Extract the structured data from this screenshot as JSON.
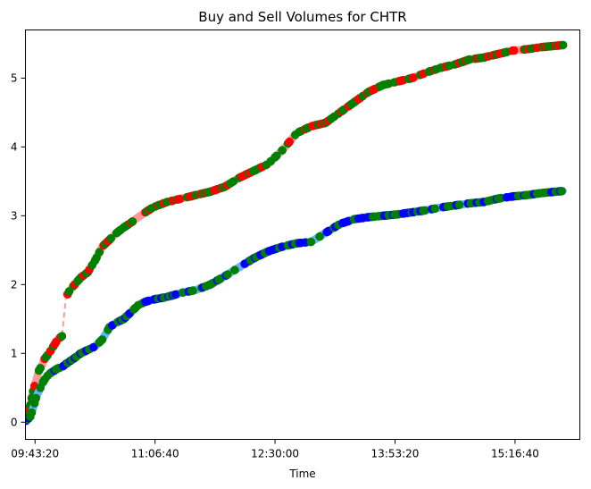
{
  "chart_data": {
    "type": "scatter",
    "title": "Buy and Sell Volumes for CHTR",
    "xlabel": "Time",
    "ylabel": "",
    "x_ticks": [
      "09:43:20",
      "11:06:40",
      "12:30:00",
      "13:53:20",
      "15:16:40"
    ],
    "x_tick_seconds": [
      35000,
      40000,
      45000,
      50000,
      55000
    ],
    "xlim_seconds": [
      34600,
      57700
    ],
    "ylim": [
      -0.25,
      5.7
    ],
    "y_ticks": [
      0,
      1,
      2,
      3,
      4,
      5
    ],
    "grid": false,
    "legend": "none",
    "colors": {
      "upper_line": "#ff9999",
      "upper_marker": "#ff0000",
      "lower_line": "#66b3ff",
      "lower_marker": "#0000ff",
      "trade_marker": "#008000"
    },
    "series": [
      {
        "color": "#ff9999",
        "marker_color": "#ff0000",
        "x": [
          "09:37",
          "09:40",
          "09:42",
          "09:44",
          "09:46",
          "09:48",
          "09:50",
          "09:53",
          "09:56",
          "09:59",
          "10:02",
          "10:05",
          "10:06",
          "10:07",
          "10:10",
          "10:15",
          "10:20",
          "10:25",
          "10:30",
          "10:35",
          "10:40",
          "10:45",
          "10:50",
          "10:55",
          "11:00",
          "11:05",
          "11:15",
          "11:25",
          "11:35",
          "11:45",
          "11:55",
          "12:05",
          "12:15",
          "12:25",
          "12:35",
          "12:45",
          "12:55",
          "13:05",
          "13:15",
          "13:25",
          "13:35",
          "13:45",
          "13:55",
          "14:05",
          "14:15",
          "14:25",
          "14:35",
          "14:45",
          "14:55",
          "15:05",
          "15:15",
          "15:25",
          "15:35",
          "15:45",
          "15:50"
        ],
        "y": [
          0.1,
          0.25,
          0.45,
          0.6,
          0.75,
          0.82,
          0.92,
          1.0,
          1.1,
          1.2,
          1.25,
          1.85,
          1.86,
          1.9,
          1.98,
          2.1,
          2.18,
          2.35,
          2.55,
          2.65,
          2.75,
          2.83,
          2.9,
          2.98,
          3.05,
          3.12,
          3.2,
          3.25,
          3.3,
          3.35,
          3.42,
          3.55,
          3.65,
          3.75,
          3.95,
          4.2,
          4.3,
          4.35,
          4.5,
          4.65,
          4.8,
          4.9,
          4.95,
          5.0,
          5.08,
          5.15,
          5.2,
          5.27,
          5.3,
          5.35,
          5.4,
          5.42,
          5.45,
          5.47,
          5.48
        ]
      },
      {
        "color": "#66b3ff",
        "marker_color": "#0000ff",
        "x": [
          "09:37",
          "09:40",
          "09:42",
          "09:44",
          "09:46",
          "09:48",
          "09:50",
          "09:53",
          "09:56",
          "09:59",
          "10:02",
          "10:05",
          "10:10",
          "10:15",
          "10:20",
          "10:25",
          "10:30",
          "10:35",
          "10:40",
          "10:45",
          "10:50",
          "10:55",
          "11:00",
          "11:05",
          "11:15",
          "11:25",
          "11:35",
          "11:45",
          "11:55",
          "12:05",
          "12:15",
          "12:25",
          "12:35",
          "12:45",
          "12:55",
          "13:05",
          "13:15",
          "13:25",
          "13:35",
          "13:45",
          "13:55",
          "14:05",
          "14:15",
          "14:25",
          "14:35",
          "14:45",
          "14:55",
          "15:05",
          "15:15",
          "15:25",
          "15:35",
          "15:45",
          "15:50"
        ],
        "y": [
          0.02,
          0.08,
          0.2,
          0.35,
          0.45,
          0.55,
          0.62,
          0.7,
          0.74,
          0.78,
          0.8,
          0.85,
          0.92,
          1.0,
          1.05,
          1.1,
          1.2,
          1.38,
          1.45,
          1.5,
          1.6,
          1.7,
          1.75,
          1.78,
          1.82,
          1.88,
          1.92,
          2.0,
          2.12,
          2.25,
          2.38,
          2.48,
          2.55,
          2.6,
          2.62,
          2.75,
          2.88,
          2.95,
          2.98,
          3.0,
          3.02,
          3.05,
          3.08,
          3.12,
          3.15,
          3.18,
          3.2,
          3.25,
          3.28,
          3.3,
          3.33,
          3.35,
          3.36
        ]
      }
    ]
  }
}
